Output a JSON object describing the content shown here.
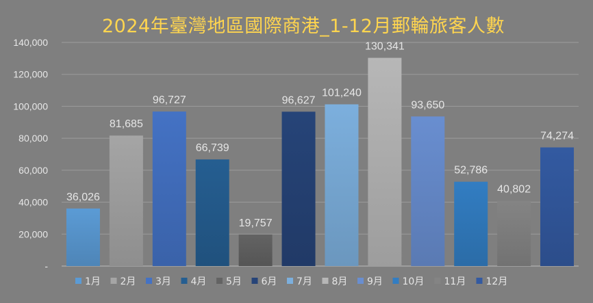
{
  "chart_data": {
    "type": "bar",
    "title": "2024年臺灣地區國際商港_1-12月郵輪旅客人數",
    "categories": [
      "1月",
      "2月",
      "3月",
      "4月",
      "5月",
      "6月",
      "7月",
      "8月",
      "9月",
      "10月",
      "11月",
      "12月"
    ],
    "values": [
      36026,
      81685,
      96727,
      66739,
      19757,
      96627,
      101240,
      130341,
      93650,
      52786,
      40802,
      74274
    ],
    "value_labels": [
      "36,026",
      "81,685",
      "96,727",
      "66,739",
      "19,757",
      "96,627",
      "101,240",
      "130,341",
      "93,650",
      "52,786",
      "40,802",
      "74,274"
    ],
    "colors": [
      "#5b9bd5",
      "#a5a5a5",
      "#4472c4",
      "#255e91",
      "#636363",
      "#264478",
      "#7cafdd",
      "#b7b7b7",
      "#698ed0",
      "#327dc2",
      "#848484",
      "#335aa1"
    ],
    "ylim": [
      0,
      140000
    ],
    "y_ticks": [
      0,
      20000,
      40000,
      60000,
      80000,
      100000,
      120000,
      140000
    ],
    "y_tick_labels": [
      "-",
      "20,000",
      "40,000",
      "60,000",
      "80,000",
      "100,000",
      "120,000",
      "140,000"
    ],
    "grid": true,
    "legend_position": "bottom",
    "xlabel": "",
    "ylabel": ""
  }
}
